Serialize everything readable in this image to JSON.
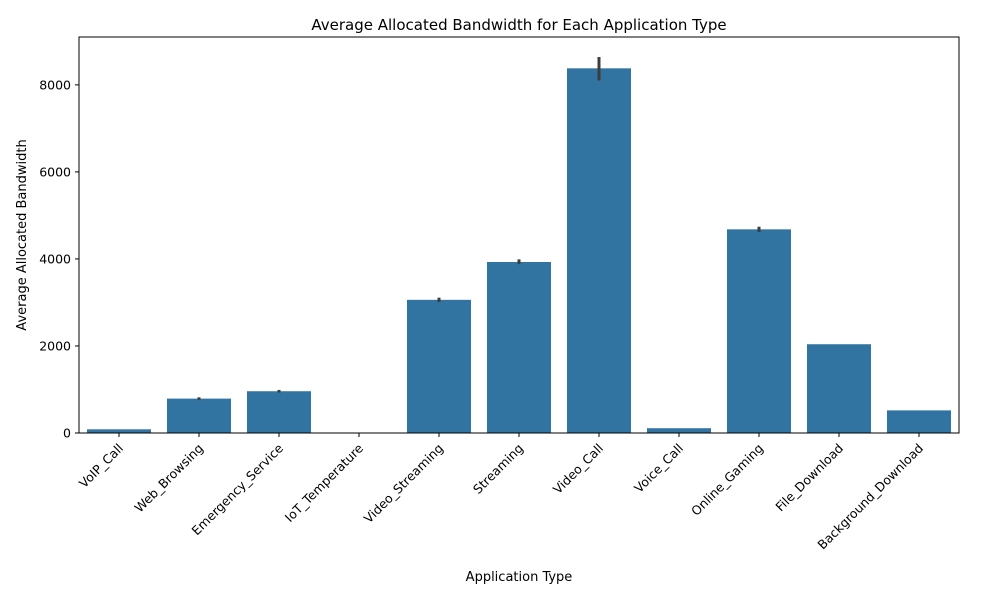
{
  "chart_data": {
    "type": "bar",
    "title": "Average Allocated Bandwidth for Each Application Type",
    "xlabel": "Application Type",
    "ylabel": "Average Allocated Bandwidth",
    "ylim": [
      0,
      9100
    ],
    "yticks": [
      0,
      2000,
      4000,
      6000,
      8000
    ],
    "grid": false,
    "bar_color": "#3274a1",
    "error_color": "#3d3d3d",
    "categories": [
      "VoIP_Call",
      "Web_Browsing",
      "Emergency_Service",
      "IoT_Temperature",
      "Video_Streaming",
      "Streaming",
      "Video_Call",
      "Voice_Call",
      "Online_Gaming",
      "File_Download",
      "Background_Download"
    ],
    "values": [
      85,
      790,
      960,
      1,
      3060,
      3930,
      8380,
      110,
      4680,
      2040,
      520
    ],
    "error_low": [
      85,
      760,
      930,
      1,
      3010,
      3880,
      8100,
      110,
      4620,
      2040,
      520
    ],
    "error_high": [
      85,
      820,
      990,
      1,
      3110,
      3990,
      8640,
      110,
      4740,
      2040,
      520
    ]
  }
}
